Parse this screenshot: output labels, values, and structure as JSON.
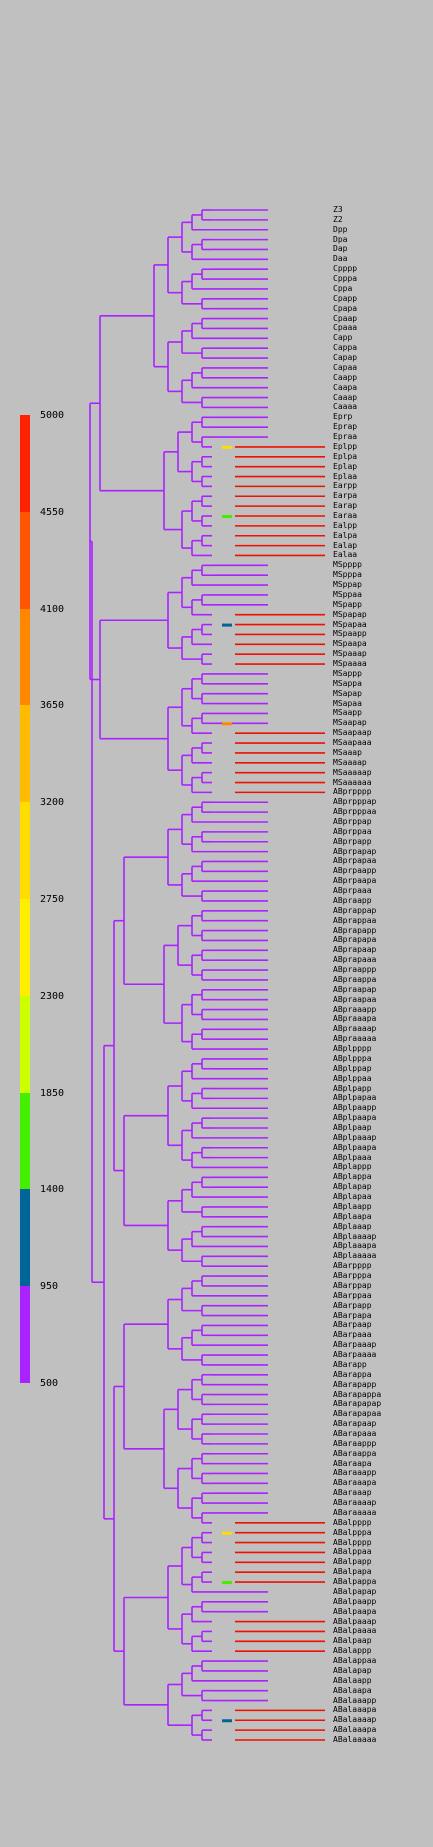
{
  "colorbar": {
    "labels": [
      "5000",
      "4550",
      "4100",
      "3650",
      "3200",
      "2750",
      "2300",
      "1850",
      "1400",
      "950",
      "500"
    ],
    "colors": [
      "#ff2200",
      "#ff5500",
      "#ff8800",
      "#ffbb00",
      "#ffdd00",
      "#ffee00",
      "#ccff00",
      "#44ee00",
      "#006699",
      "#aa22ff"
    ]
  },
  "tree": {
    "branch_color": "#aa22ff",
    "late_color": "#ee1100",
    "leaves": [
      "Z3",
      "Z2",
      "Dpp",
      "Dpa",
      "Dap",
      "Daa",
      "Cpppp",
      "Cpppa",
      "Cppa",
      "Cpapp",
      "Cpapa",
      "Cpaap",
      "Cpaaa",
      "Capp",
      "Cappa",
      "Capap",
      "Capaa",
      "Caapp",
      "Caapa",
      "Caaap",
      "Caaaa",
      "Eprp",
      "Eprap",
      "Epraa",
      "Eplpp",
      "Eplpa",
      "Eplap",
      "Eplaa",
      "Earpp",
      "Earpa",
      "Earap",
      "Earaa",
      "Ealpp",
      "Ealpa",
      "Ealap",
      "Ealaa",
      "MSpppp",
      "MSpppa",
      "MSppap",
      "MSppaa",
      "MSpapp",
      "MSpapap",
      "MSpapaa",
      "MSpaapp",
      "MSpaapa",
      "MSpaaap",
      "MSpaaaa",
      "MSappp",
      "MSappa",
      "MSapap",
      "MSapaa",
      "MSaapp",
      "MSaapap",
      "MSaapaap",
      "MSaapaaa",
      "MSaaap",
      "MSaaaap",
      "MSaaaaap",
      "MSaaaaaa",
      "ABprpppp",
      "ABprpppap",
      "ABprpppaa",
      "ABprppap",
      "ABprppaa",
      "ABprpapp",
      "ABprpapap",
      "ABprpapaa",
      "ABprpaapp",
      "ABprpaapa",
      "ABprpaaa",
      "ABpraapp",
      "ABprappap",
      "ABprappaa",
      "ABprapapp",
      "ABprapapa",
      "ABprapaap",
      "ABprapaaa",
      "ABpraappp",
      "ABpraappa",
      "ABpraapap",
      "ABpraapaa",
      "ABpraaapp",
      "ABpraaapa",
      "ABpraaaap",
      "ABpraaaaa",
      "ABplpppp",
      "ABplpppa",
      "ABplppap",
      "ABplppaa",
      "ABplpapp",
      "ABplpapaa",
      "ABplpaapp",
      "ABplpaapa",
      "ABplpaap",
      "ABplpaaap",
      "ABplpaapa",
      "ABplpaaa",
      "ABplappp",
      "ABplappa",
      "ABplapap",
      "ABplapaa",
      "ABplaapp",
      "ABplaapa",
      "ABplaaap",
      "ABplaaaap",
      "ABplaaapa",
      "ABplaaaaa",
      "ABarpppp",
      "ABarpppa",
      "ABarppap",
      "ABarppaa",
      "ABarpapp",
      "ABarpapa",
      "ABarpaap",
      "ABarpaaa",
      "ABarpaaap",
      "ABarpaaaa",
      "ABarapp",
      "ABarappa",
      "ABarapapp",
      "ABarapappa",
      "ABarapapap",
      "ABarapapaa",
      "ABarapaap",
      "ABarapaaa",
      "ABaraappp",
      "ABaraappa",
      "ABaraapa",
      "ABaraaapp",
      "ABaraaapa",
      "ABaraaap",
      "ABaraaaap",
      "ABaraaaaa",
      "ABalpppp",
      "ABalpppa",
      "ABalpppp",
      "ABalppaa",
      "ABalpapp",
      "ABalpapa",
      "ABalpappa",
      "ABalpapap",
      "ABalpaapp",
      "ABalpaapa",
      "ABalpaaap",
      "ABalpaaaa",
      "ABalpaap",
      "ABalappp",
      "ABalappaa",
      "ABalapap",
      "ABalaapp",
      "ABalaapa",
      "ABalaaapp",
      "ABalaaapa",
      "ABalaaaap",
      "ABalaaapa",
      "ABalaaaaa"
    ]
  }
}
